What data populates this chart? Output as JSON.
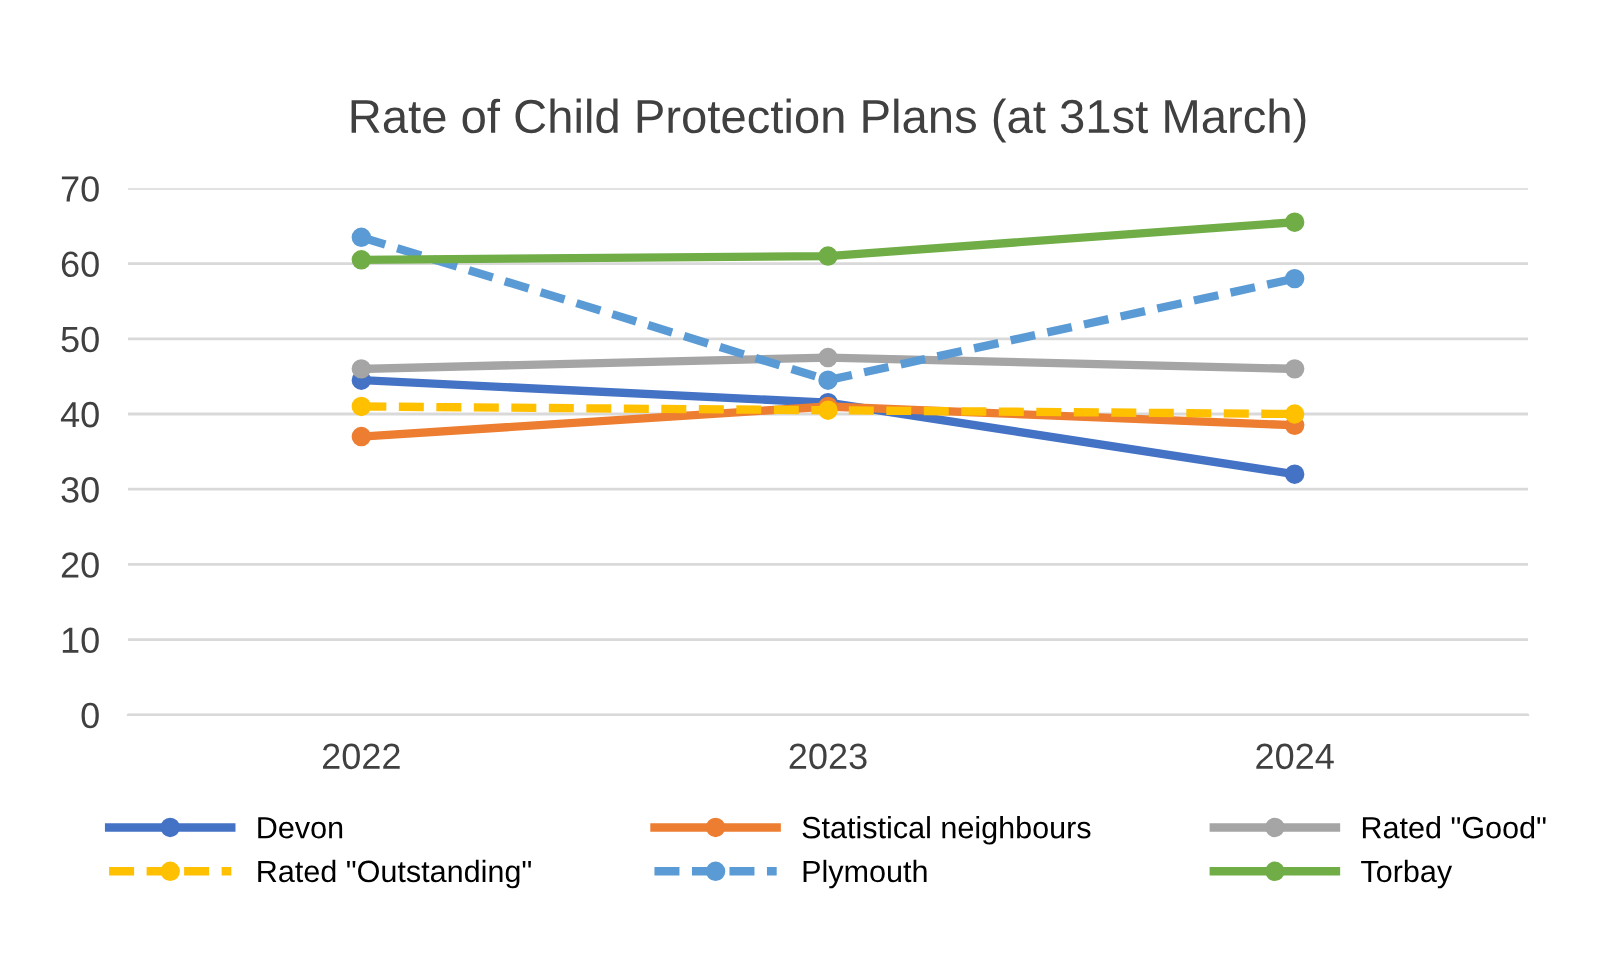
{
  "chart_data": {
    "type": "line",
    "title": "Rate of Child Protection Plans (at 31st March)",
    "categories": [
      "2022",
      "2023",
      "2024"
    ],
    "ylim": [
      0,
      70
    ],
    "yticks": [
      0,
      10,
      20,
      30,
      40,
      50,
      60,
      70
    ],
    "grid": "y",
    "legend": "bottom",
    "marker": "circle",
    "series": [
      {
        "name": "Devon",
        "color": "#4472c4",
        "values": [
          44.5,
          41.5,
          32
        ]
      },
      {
        "name": "Statistical neighbours",
        "color": "#ed7d31",
        "values": [
          37,
          41,
          38.5
        ]
      },
      {
        "name": "Rated \"Good\"",
        "color": "#a5a5a5",
        "values": [
          46,
          47.5,
          46
        ]
      },
      {
        "name": "Rated \"Outstanding\"",
        "color": "#ffc000",
        "values": [
          41,
          40.5,
          40
        ],
        "line_style": "dashed"
      },
      {
        "name": "Plymouth",
        "color": "#5b9bd5",
        "values": [
          63.5,
          44.5,
          58
        ],
        "line_style": "dashed"
      },
      {
        "name": "Torbay",
        "color": "#70ad47",
        "values": [
          60.5,
          61,
          65.5
        ]
      }
    ]
  }
}
